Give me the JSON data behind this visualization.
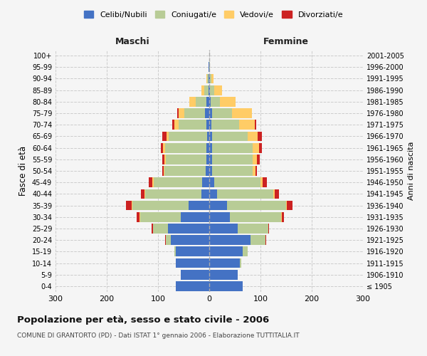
{
  "age_groups": [
    "100+",
    "95-99",
    "90-94",
    "85-89",
    "80-84",
    "75-79",
    "70-74",
    "65-69",
    "60-64",
    "55-59",
    "50-54",
    "45-49",
    "40-44",
    "35-39",
    "30-34",
    "25-29",
    "20-24",
    "15-19",
    "10-14",
    "5-9",
    "0-4"
  ],
  "birth_years": [
    "≤ 1905",
    "1906-1910",
    "1911-1915",
    "1916-1920",
    "1921-1925",
    "1926-1930",
    "1931-1935",
    "1936-1940",
    "1941-1945",
    "1946-1950",
    "1951-1955",
    "1956-1960",
    "1961-1965",
    "1966-1970",
    "1971-1975",
    "1976-1980",
    "1981-1985",
    "1986-1990",
    "1991-1995",
    "1996-2000",
    "2001-2005"
  ],
  "male": {
    "celibi": [
      0,
      1,
      1,
      2,
      5,
      8,
      5,
      4,
      6,
      5,
      7,
      14,
      15,
      40,
      55,
      80,
      75,
      65,
      65,
      55,
      65
    ],
    "coniugati": [
      0,
      1,
      3,
      8,
      22,
      40,
      55,
      75,
      80,
      80,
      80,
      95,
      110,
      110,
      80,
      30,
      10,
      3,
      0,
      0,
      0
    ],
    "vedovi": [
      0,
      0,
      2,
      5,
      12,
      12,
      8,
      5,
      4,
      3,
      2,
      2,
      2,
      2,
      1,
      0,
      0,
      0,
      0,
      0,
      0
    ],
    "divorziati": [
      0,
      0,
      0,
      0,
      0,
      2,
      4,
      7,
      4,
      4,
      3,
      7,
      7,
      10,
      5,
      2,
      1,
      0,
      0,
      0,
      0
    ]
  },
  "female": {
    "nubili": [
      0,
      0,
      1,
      2,
      3,
      6,
      4,
      5,
      5,
      5,
      5,
      10,
      15,
      35,
      40,
      55,
      80,
      65,
      60,
      55,
      65
    ],
    "coniugate": [
      0,
      1,
      3,
      8,
      18,
      38,
      55,
      70,
      80,
      80,
      80,
      90,
      110,
      115,
      100,
      60,
      30,
      10,
      2,
      0,
      0
    ],
    "vedove": [
      0,
      1,
      4,
      15,
      30,
      40,
      30,
      20,
      12,
      8,
      5,
      4,
      3,
      2,
      1,
      0,
      0,
      0,
      0,
      0,
      0
    ],
    "divorziate": [
      0,
      0,
      0,
      0,
      0,
      0,
      3,
      8,
      6,
      5,
      3,
      8,
      8,
      10,
      5,
      2,
      1,
      0,
      0,
      0,
      0
    ]
  },
  "colors": {
    "celibi": "#4472C4",
    "coniugati": "#B8CC96",
    "vedovi": "#FFCC66",
    "divorziati": "#CC2222"
  },
  "xlim": [
    -300,
    300
  ],
  "xticks": [
    -300,
    -200,
    -100,
    0,
    100,
    200,
    300
  ],
  "xticklabels": [
    "300",
    "200",
    "100",
    "0",
    "100",
    "200",
    "300"
  ],
  "title": "Popolazione per età, sesso e stato civile - 2006",
  "subtitle": "COMUNE DI GRANTORTO (PD) - Dati ISTAT 1° gennaio 2006 - Elaborazione TUTTITALIA.IT",
  "ylabel_left": "Fasce di età",
  "ylabel_right": "Anni di nascita",
  "label_maschi": "Maschi",
  "label_femmine": "Femmine",
  "legend_labels": [
    "Celibi/Nubili",
    "Coniugati/e",
    "Vedovi/e",
    "Divorziati/e"
  ],
  "bg_color": "#f5f5f5",
  "grid_color": "#cccccc"
}
